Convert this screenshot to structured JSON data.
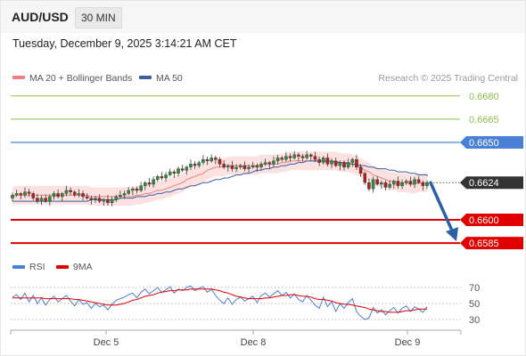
{
  "header": {
    "pair": "AUD/USD",
    "timeframe": "30 MIN"
  },
  "timestamp": "Tuesday, December 9, 2025 3:14:21 AM CET",
  "legend": {
    "ma20": {
      "label": "MA 20 + Bollinger Bands",
      "color": "#f08080"
    },
    "ma50": {
      "label": "MA 50",
      "color": "#3a5fa0"
    }
  },
  "copyright": "Research © 2025 Trading Central",
  "price_levels": [
    {
      "value": 0.668,
      "label": "0.6680",
      "kind": "target",
      "color": "#8cbf4e"
    },
    {
      "value": 0.6665,
      "label": "0.6665",
      "kind": "target",
      "color": "#8cbf4e"
    },
    {
      "value": 0.665,
      "label": "0.6650",
      "kind": "pivot",
      "color": "#4a7fd6"
    },
    {
      "value": 0.6624,
      "label": "0.6624",
      "kind": "last",
      "color": "#333333"
    },
    {
      "value": 0.66,
      "label": "0.6600",
      "kind": "support",
      "color": "#e00000"
    },
    {
      "value": 0.6585,
      "label": "0.6585",
      "kind": "support",
      "color": "#e00000"
    }
  ],
  "x_labels": [
    "Dec 5",
    "Dec 8",
    "Dec 9"
  ],
  "rsi_panel": {
    "legend": [
      {
        "label": "RSI",
        "color": "#4a7fd6"
      },
      {
        "label": "9MA",
        "color": "#e00000"
      }
    ],
    "levels": [
      70,
      50,
      30
    ],
    "level_labels": [
      "70",
      "50",
      "30"
    ]
  },
  "chart_data": {
    "type": "candlestick",
    "timeframe": "30 MIN",
    "ylim": [
      0.6578,
      0.669
    ],
    "close_series": [
      0.6616,
      0.6617,
      0.6616,
      0.6618,
      0.6617,
      0.6614,
      0.6612,
      0.6614,
      0.6612,
      0.6615,
      0.6617,
      0.6615,
      0.6617,
      0.6619,
      0.6618,
      0.6616,
      0.6617,
      0.6615,
      0.6614,
      0.6613,
      0.6614,
      0.6612,
      0.6613,
      0.6611,
      0.6613,
      0.6615,
      0.6616,
      0.6617,
      0.6619,
      0.662,
      0.6619,
      0.6622,
      0.6624,
      0.6623,
      0.6626,
      0.6628,
      0.6627,
      0.6629,
      0.6631,
      0.663,
      0.6633,
      0.6632,
      0.6634,
      0.6636,
      0.6635,
      0.6637,
      0.6639,
      0.6638,
      0.664,
      0.6639,
      0.6636,
      0.6634,
      0.6635,
      0.6633,
      0.6634,
      0.6635,
      0.6633,
      0.6634,
      0.6635,
      0.6634,
      0.6636,
      0.6637,
      0.6636,
      0.6638,
      0.664,
      0.6639,
      0.6641,
      0.664,
      0.6642,
      0.6641,
      0.664,
      0.6642,
      0.6641,
      0.6639,
      0.6637,
      0.664,
      0.6636,
      0.6638,
      0.6635,
      0.6637,
      0.6634,
      0.6637,
      0.6639,
      0.6634,
      0.663,
      0.6624,
      0.662,
      0.6626,
      0.6623,
      0.6624,
      0.6621,
      0.6623,
      0.6625,
      0.6622,
      0.6624,
      0.6625,
      0.6623,
      0.6626,
      0.6624,
      0.6622,
      0.6624
    ],
    "ma20_series": [
      0.6615,
      0.6616,
      0.6616,
      0.6616,
      0.6616,
      0.6616,
      0.6616,
      0.6616,
      0.6616,
      0.6616,
      0.6616,
      0.6616,
      0.6616,
      0.6616,
      0.6616,
      0.6616,
      0.6616,
      0.6616,
      0.6616,
      0.6615,
      0.6615,
      0.6615,
      0.6615,
      0.6615,
      0.6615,
      0.6615,
      0.6615,
      0.6615,
      0.6615,
      0.6615,
      0.6616,
      0.6616,
      0.6617,
      0.6617,
      0.6618,
      0.6619,
      0.6619,
      0.662,
      0.6621,
      0.6622,
      0.6623,
      0.6624,
      0.6626,
      0.6627,
      0.6628,
      0.6629,
      0.663,
      0.6632,
      0.6633,
      0.6634,
      0.6634,
      0.6634,
      0.6635,
      0.6635,
      0.6635,
      0.6635,
      0.6635,
      0.6635,
      0.6635,
      0.6635,
      0.6636,
      0.6636,
      0.6636,
      0.6636,
      0.6636,
      0.6637,
      0.6637,
      0.6638,
      0.6638,
      0.6638,
      0.6638,
      0.6638,
      0.6638,
      0.6638,
      0.6638,
      0.6638,
      0.6638,
      0.6638,
      0.6638,
      0.6637,
      0.6637,
      0.6637,
      0.6636,
      0.6635,
      0.6634,
      0.6632,
      0.6631,
      0.6629,
      0.6628,
      0.6627,
      0.6626,
      0.6625,
      0.6625,
      0.6624,
      0.6624,
      0.6624,
      0.6623,
      0.6623,
      0.6624,
      0.6624,
      0.6624
    ],
    "ma50_series": [
      0.6612,
      0.6612,
      0.6612,
      0.6612,
      0.6612,
      0.6612,
      0.6612,
      0.6612,
      0.6612,
      0.6612,
      0.6612,
      0.6612,
      0.6612,
      0.6612,
      0.6612,
      0.6612,
      0.6612,
      0.6612,
      0.6612,
      0.6613,
      0.6613,
      0.6613,
      0.6613,
      0.6613,
      0.6613,
      0.6613,
      0.6614,
      0.6614,
      0.6614,
      0.6614,
      0.6615,
      0.6615,
      0.6615,
      0.6616,
      0.6616,
      0.6617,
      0.6617,
      0.6618,
      0.6618,
      0.6619,
      0.662,
      0.662,
      0.6621,
      0.6622,
      0.6622,
      0.6623,
      0.6624,
      0.6624,
      0.6625,
      0.6626,
      0.6626,
      0.6627,
      0.6627,
      0.6628,
      0.6629,
      0.6629,
      0.663,
      0.663,
      0.6631,
      0.6632,
      0.6632,
      0.6633,
      0.6633,
      0.6634,
      0.6634,
      0.6635,
      0.6635,
      0.6636,
      0.6636,
      0.6637,
      0.6637,
      0.6638,
      0.6638,
      0.6638,
      0.6638,
      0.6638,
      0.6638,
      0.6638,
      0.6637,
      0.6637,
      0.6637,
      0.6636,
      0.6636,
      0.6636,
      0.6635,
      0.6635,
      0.6634,
      0.6634,
      0.6633,
      0.6633,
      0.6633,
      0.6632,
      0.6632,
      0.6631,
      0.6631,
      0.6631,
      0.663,
      0.663,
      0.6629,
      0.6629,
      0.6629
    ],
    "band_width": 0.0006,
    "rsi_series": [
      58,
      61,
      55,
      63,
      52,
      60,
      50,
      57,
      48,
      55,
      59,
      52,
      56,
      60,
      53,
      47,
      55,
      49,
      51,
      44,
      50,
      46,
      48,
      42,
      49,
      54,
      56,
      58,
      61,
      63,
      57,
      64,
      68,
      62,
      66,
      70,
      64,
      67,
      71,
      63,
      68,
      66,
      70,
      72,
      66,
      69,
      71,
      64,
      68,
      60,
      54,
      50,
      57,
      49,
      55,
      58,
      53,
      56,
      59,
      51,
      60,
      63,
      58,
      62,
      66,
      60,
      64,
      57,
      62,
      55,
      52,
      60,
      54,
      48,
      44,
      58,
      46,
      52,
      40,
      50,
      44,
      51,
      56,
      40,
      34,
      30,
      32,
      45,
      38,
      42,
      36,
      41,
      45,
      38,
      44,
      47,
      40,
      46,
      43,
      39,
      46
    ],
    "rsi_ma9_series": [
      57,
      57,
      57,
      57,
      57,
      57,
      57,
      57,
      56,
      56,
      56,
      56,
      56,
      56,
      56,
      55,
      55,
      54,
      53,
      52,
      51,
      50,
      49,
      48,
      48,
      48,
      49,
      50,
      52,
      54,
      55,
      57,
      59,
      60,
      61,
      63,
      64,
      65,
      66,
      66,
      67,
      67,
      67,
      68,
      68,
      68,
      68,
      68,
      68,
      67,
      66,
      64,
      63,
      61,
      59,
      58,
      57,
      56,
      56,
      56,
      56,
      57,
      57,
      58,
      59,
      60,
      60,
      61,
      61,
      60,
      59,
      59,
      58,
      56,
      55,
      55,
      54,
      53,
      51,
      50,
      49,
      49,
      48,
      47,
      46,
      45,
      43,
      42,
      41,
      40,
      40,
      39,
      39,
      39,
      40,
      41,
      41,
      42,
      43,
      43,
      43
    ],
    "forecast": {
      "from": 0.6624,
      "to": 0.6585,
      "direction": "down"
    }
  }
}
